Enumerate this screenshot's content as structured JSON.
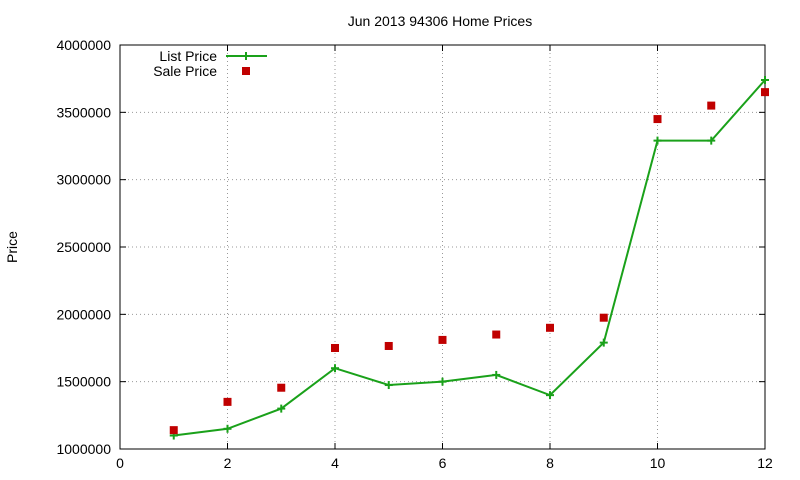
{
  "chart_data": {
    "type": "line",
    "title": "Jun 2013 94306 Home Prices",
    "xlabel": "",
    "ylabel": "Price",
    "xlim": [
      0,
      12
    ],
    "ylim": [
      1000000,
      4000000
    ],
    "xticks": [
      0,
      2,
      4,
      6,
      8,
      10,
      12
    ],
    "yticks": [
      1000000,
      1500000,
      2000000,
      2500000,
      3000000,
      3500000,
      4000000
    ],
    "grid": true,
    "legend_position": "top-left",
    "series": [
      {
        "name": "List Price",
        "style": "line-with-plus-markers",
        "color": "#1aa11a",
        "x": [
          1,
          2,
          3,
          4,
          5,
          6,
          7,
          8,
          9,
          10,
          11,
          12
        ],
        "values": [
          1100000,
          1150000,
          1300000,
          1600000,
          1475000,
          1500000,
          1550000,
          1400000,
          1790000,
          3290000,
          3290000,
          3740000
        ]
      },
      {
        "name": "Sale Price",
        "style": "square-markers",
        "color": "#c00000",
        "x": [
          1,
          2,
          3,
          4,
          5,
          6,
          7,
          8,
          9,
          10,
          11,
          12
        ],
        "values": [
          1140000,
          1350000,
          1455000,
          1750000,
          1765000,
          1810000,
          1850000,
          1900000,
          1975000,
          3450000,
          3550000,
          3650000
        ]
      }
    ]
  }
}
